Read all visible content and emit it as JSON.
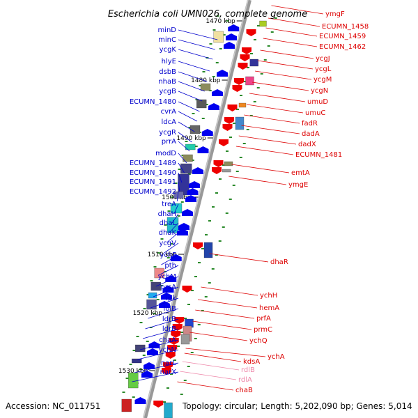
{
  "title": "Escherichia coli UMN026, complete genome",
  "footer": {
    "accession": "Accession: NC_011751",
    "summary": "Topology: circular; Length: 5,202,090 bp; Genes: 5,014"
  },
  "kbp_labels": [
    "1470 kbp",
    "1480 kbp",
    "1490 kbp",
    "1500 kbp",
    "1510 kbp",
    "1520 kbp",
    "1530 kbp"
  ],
  "left_genes": [
    "minD",
    "minC",
    "ycgK",
    "hlyE",
    "dsbB",
    "nhaB",
    "ycgB",
    "ECUMN_1480",
    "cvrA",
    "ldcA",
    "ycgR",
    "prrA",
    "modD",
    "ECUMN_1489",
    "ECUMN_1490",
    "ECUMN_1491",
    "ECUMN_1492",
    "treA",
    "dhaH",
    "dhaL",
    "dhaK",
    "ycgV",
    "ychF",
    "pth",
    "ychM",
    "prsA",
    "ipk",
    "lolB",
    "ldrB",
    "ldrB",
    "chaA",
    "ychN",
    "narL",
    "narX"
  ],
  "right_genes": [
    "ymgF",
    "ECUMN_1458",
    "ECUMN_1459",
    "ECUMN_1462",
    "ycgJ",
    "ycgL",
    "ycgM",
    "ycgN",
    "umuD",
    "umuC",
    "fadR",
    "dadA",
    "dadX",
    "ECUMN_1481",
    "emtA",
    "ymgE",
    "dhaR",
    "ychH",
    "hemA",
    "prfA",
    "prmC",
    "ychQ",
    "ychA",
    "kdsA",
    "rdlB",
    "rdlA",
    "chaB"
  ],
  "colors": {
    "left_label": "#0000cc",
    "right_label": "#dd0000",
    "rna_label": "#ee88aa",
    "axis": "#999999",
    "tick": "#2a8a2a"
  }
}
